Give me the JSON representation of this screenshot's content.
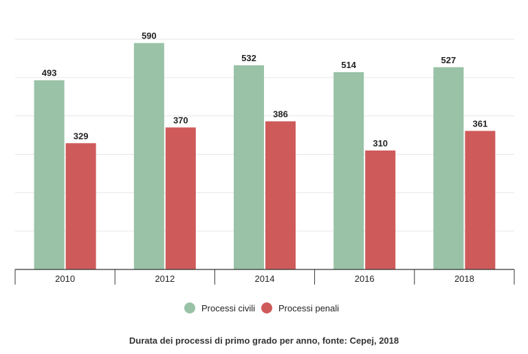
{
  "chart_data": {
    "type": "bar",
    "categories": [
      "2010",
      "2012",
      "2014",
      "2016",
      "2018"
    ],
    "series": [
      {
        "name": "Processi civili",
        "values": [
          493,
          590,
          532,
          514,
          527
        ],
        "color": "#99c2a7"
      },
      {
        "name": "Processi penali",
        "values": [
          329,
          370,
          386,
          310,
          361
        ],
        "color": "#cf5a5a"
      }
    ],
    "ylim": [
      0,
      600
    ],
    "gridlines": true,
    "legend_position": "bottom-center",
    "caption": "Durata dei processi di primo grado per anno, fonte: Cepej, 2018"
  }
}
